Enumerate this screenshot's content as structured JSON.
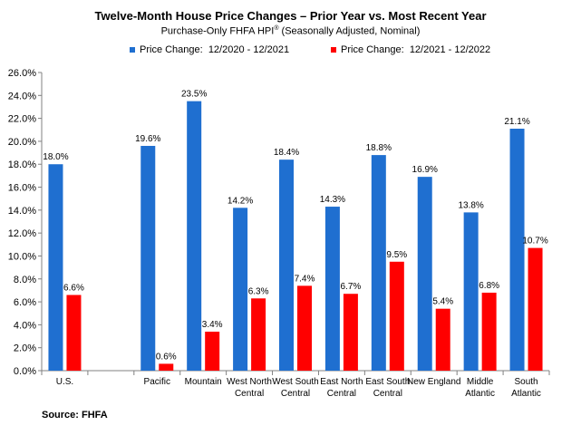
{
  "title": "Twelve-Month House Price Changes – Prior Year vs. Most Recent Year",
  "subtitle_main": "Purchase-Only FHFA HPI",
  "subtitle_mark": "®",
  "subtitle_tail": " (Seasonally Adjusted, Nominal)",
  "source": "Source: FHFA",
  "colors": {
    "series1": "#1F6FD0",
    "series2": "#FF0000",
    "axis": "#808080"
  },
  "chart_data": {
    "type": "bar",
    "ylim": [
      0,
      26
    ],
    "ytick_step": 2,
    "ytick_labels": [
      "0.0%",
      "2.0%",
      "4.0%",
      "6.0%",
      "8.0%",
      "10.0%",
      "12.0%",
      "14.0%",
      "16.0%",
      "18.0%",
      "20.0%",
      "22.0%",
      "24.0%",
      "26.0%"
    ],
    "categories": [
      [
        "U.S."
      ],
      [
        ""
      ],
      [
        "Pacific"
      ],
      [
        "Mountain"
      ],
      [
        "West North",
        "Central"
      ],
      [
        "West South",
        "Central"
      ],
      [
        "East North",
        "Central"
      ],
      [
        "East South",
        "Central"
      ],
      [
        "New England"
      ],
      [
        "Middle",
        "Atlantic"
      ],
      [
        "South",
        "Atlantic"
      ]
    ],
    "series": [
      {
        "name": "Price Change:  12/2020 - 12/2021",
        "values": [
          18.0,
          null,
          19.6,
          23.5,
          14.2,
          18.4,
          14.3,
          18.8,
          16.9,
          13.8,
          21.1
        ],
        "labels": [
          "18.0%",
          "",
          "19.6%",
          "23.5%",
          "14.2%",
          "18.4%",
          "14.3%",
          "18.8%",
          "16.9%",
          "13.8%",
          "21.1%"
        ]
      },
      {
        "name": "Price Change:  12/2021 - 12/2022",
        "values": [
          6.6,
          null,
          0.6,
          3.4,
          6.3,
          7.4,
          6.7,
          9.5,
          5.4,
          6.8,
          10.7
        ],
        "labels": [
          "6.6%",
          "",
          "0.6%",
          "3.4%",
          "6.3%",
          "7.4%",
          "6.7%",
          "9.5%",
          "5.4%",
          "6.8%",
          "10.7%"
        ]
      }
    ],
    "legend_position": "top",
    "grid": false
  }
}
